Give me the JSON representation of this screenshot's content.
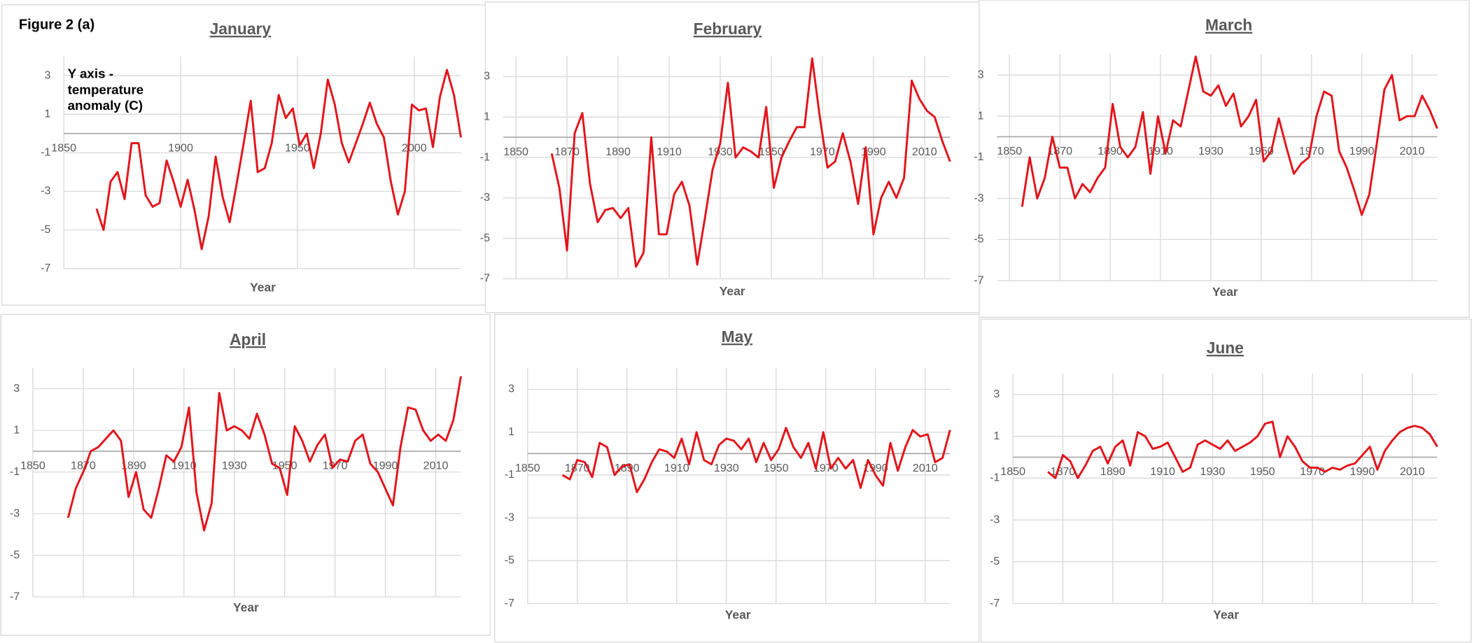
{
  "figure_label": "Figure 2 (a)",
  "chart_data": [
    {
      "type": "line",
      "title": "January",
      "xlabel": "Year",
      "annotation": "Y axis - temperature anomaly (C)",
      "color": "#e3141b",
      "x": [
        1864,
        1867,
        1870,
        1873,
        1876,
        1879,
        1882,
        1885,
        1888,
        1891,
        1894,
        1897,
        1900,
        1903,
        1906,
        1909,
        1912,
        1915,
        1918,
        1921,
        1924,
        1927,
        1930,
        1933,
        1936,
        1939,
        1942,
        1945,
        1948,
        1951,
        1954,
        1957,
        1960,
        1963,
        1966,
        1969,
        1972,
        1975,
        1978,
        1981,
        1984,
        1987,
        1990,
        1993,
        1996,
        1999,
        2002,
        2005,
        2008,
        2011,
        2014,
        2017,
        2020
      ],
      "values": [
        -3.9,
        -5.0,
        -2.5,
        -2.0,
        -3.4,
        -0.5,
        -0.5,
        -3.2,
        -3.8,
        -3.6,
        -1.4,
        -2.5,
        -3.8,
        -2.4,
        -4.0,
        -6.0,
        -4.3,
        -1.2,
        -3.3,
        -4.6,
        -2.6,
        -0.5,
        1.7,
        -2.0,
        -1.8,
        -0.5,
        2.0,
        0.8,
        1.3,
        -0.6,
        0,
        -1.8,
        0,
        2.8,
        1.5,
        -0.5,
        -1.5,
        -0.5,
        0.5,
        1.6,
        0.5,
        -0.2,
        -2.5,
        -4.2,
        -3.0,
        1.5,
        1.2,
        1.3,
        -0.7,
        1.9,
        3.3,
        2.0,
        -0.2
      ],
      "xlim": [
        1850,
        2020
      ],
      "xticks": [
        1850,
        1900,
        1950,
        2000
      ],
      "ylim": [
        -7,
        4
      ],
      "yticks": [
        -7,
        -5,
        -3,
        -1,
        1,
        3
      ],
      "grid": true
    },
    {
      "type": "line",
      "title": "February",
      "xlabel": "Year",
      "color": "#e3141b",
      "x": [
        1864,
        1867,
        1870,
        1873,
        1876,
        1879,
        1882,
        1885,
        1888,
        1891,
        1894,
        1897,
        1900,
        1903,
        1906,
        1909,
        1912,
        1915,
        1918,
        1921,
        1924,
        1927,
        1930,
        1933,
        1936,
        1939,
        1942,
        1945,
        1948,
        1951,
        1954,
        1957,
        1960,
        1963,
        1966,
        1969,
        1972,
        1975,
        1978,
        1981,
        1984,
        1987,
        1990,
        1993,
        1996,
        1999,
        2002,
        2005,
        2008,
        2011,
        2014,
        2017,
        2020
      ],
      "values": [
        -0.8,
        -2.5,
        -5.6,
        0.2,
        1.2,
        -2.3,
        -4.2,
        -3.6,
        -3.5,
        -4.0,
        -3.5,
        -6.4,
        -5.7,
        0,
        -4.8,
        -4.8,
        -2.8,
        -2.2,
        -3.4,
        -6.3,
        -4.0,
        -1.6,
        -0.3,
        2.7,
        -1.0,
        -0.5,
        -0.7,
        -1.0,
        1.5,
        -2.5,
        -1.0,
        -0.2,
        0.5,
        0.5,
        3.9,
        1.0,
        -1.5,
        -1.2,
        0.2,
        -1.2,
        -3.3,
        -0.5,
        -4.8,
        -3.0,
        -2.2,
        -3.0,
        -2.0,
        2.8,
        1.9,
        1.3,
        1.0,
        -0.2,
        -1.2
      ],
      "xlim": [
        1845,
        2020
      ],
      "xticks": [
        1850,
        1870,
        1890,
        1910,
        1930,
        1950,
        1970,
        1990,
        2010
      ],
      "ylim": [
        -7,
        4
      ],
      "yticks": [
        -7,
        -5,
        -3,
        -1,
        1,
        3
      ],
      "grid": true
    },
    {
      "type": "line",
      "title": "March",
      "xlabel": "Year",
      "color": "#e3141b",
      "x": [
        1855,
        1858,
        1861,
        1864,
        1867,
        1870,
        1873,
        1876,
        1879,
        1882,
        1885,
        1888,
        1891,
        1894,
        1897,
        1900,
        1903,
        1906,
        1909,
        1912,
        1915,
        1918,
        1921,
        1924,
        1927,
        1930,
        1933,
        1936,
        1939,
        1942,
        1945,
        1948,
        1951,
        1954,
        1957,
        1960,
        1963,
        1966,
        1969,
        1972,
        1975,
        1978,
        1981,
        1984,
        1987,
        1990,
        1993,
        1996,
        1999,
        2002,
        2005,
        2008,
        2011,
        2014,
        2017,
        2020
      ],
      "values": [
        -3.4,
        -1.0,
        -3.0,
        -2.0,
        0,
        -1.5,
        -1.5,
        -3.0,
        -2.3,
        -2.7,
        -2.0,
        -1.5,
        1.6,
        -0.5,
        -1.0,
        -0.5,
        1.2,
        -1.8,
        1.0,
        -0.8,
        0.8,
        0.5,
        2.2,
        3.9,
        2.2,
        2.0,
        2.5,
        1.5,
        2.1,
        0.5,
        1.0,
        1.8,
        -1.2,
        -0.7,
        0.9,
        -0.5,
        -1.8,
        -1.3,
        -1.0,
        1.0,
        2.2,
        2.0,
        -0.7,
        -1.5,
        -2.6,
        -3.8,
        -2.8,
        -0.3,
        2.3,
        3.0,
        0.8,
        1.0,
        1.0,
        2.0,
        1.3,
        0.4
      ],
      "xlim": [
        1845,
        2020
      ],
      "xticks": [
        1850,
        1870,
        1890,
        1910,
        1930,
        1950,
        1970,
        1990,
        2010
      ],
      "ylim": [
        -7,
        4
      ],
      "yticks": [
        -7,
        -5,
        -3,
        -1,
        1,
        3
      ],
      "grid": true
    },
    {
      "type": "line",
      "title": "April",
      "xlabel": "Year",
      "color": "#e3141b",
      "x": [
        1864,
        1867,
        1870,
        1873,
        1876,
        1879,
        1882,
        1885,
        1888,
        1891,
        1894,
        1897,
        1900,
        1903,
        1906,
        1909,
        1912,
        1915,
        1918,
        1921,
        1924,
        1927,
        1930,
        1933,
        1936,
        1939,
        1942,
        1945,
        1948,
        1951,
        1954,
        1957,
        1960,
        1963,
        1966,
        1969,
        1972,
        1975,
        1978,
        1981,
        1984,
        1987,
        1990,
        1993,
        1996,
        1999,
        2002,
        2005,
        2008,
        2011,
        2014,
        2017,
        2020
      ],
      "values": [
        -3.2,
        -1.8,
        -1.0,
        0,
        0.2,
        0.6,
        1.0,
        0.5,
        -2.2,
        -1.0,
        -2.8,
        -3.2,
        -1.8,
        -0.2,
        -0.5,
        0.2,
        2.1,
        -2.0,
        -3.8,
        -2.5,
        2.8,
        1.0,
        1.2,
        1.0,
        0.6,
        1.8,
        0.8,
        -0.6,
        -0.8,
        -2.1,
        1.2,
        0.5,
        -0.5,
        0.3,
        0.8,
        -0.8,
        -0.4,
        -0.5,
        0.5,
        0.8,
        -0.6,
        -1.0,
        -1.8,
        -2.6,
        0.2,
        2.1,
        2.0,
        1.0,
        0.5,
        0.8,
        0.5,
        1.5,
        3.6
      ],
      "xlim": [
        1850,
        2020
      ],
      "xticks": [
        1850,
        1870,
        1890,
        1910,
        1930,
        1950,
        1970,
        1990,
        2010
      ],
      "ylim": [
        -7,
        4
      ],
      "yticks": [
        -7,
        -5,
        -3,
        -1,
        1,
        3
      ],
      "grid": true
    },
    {
      "type": "line",
      "title": "May",
      "xlabel": "Year",
      "color": "#e3141b",
      "x": [
        1864,
        1867,
        1870,
        1873,
        1876,
        1879,
        1882,
        1885,
        1888,
        1891,
        1894,
        1897,
        1900,
        1903,
        1906,
        1909,
        1912,
        1915,
        1918,
        1921,
        1924,
        1927,
        1930,
        1933,
        1936,
        1939,
        1942,
        1945,
        1948,
        1951,
        1954,
        1957,
        1960,
        1963,
        1966,
        1969,
        1972,
        1975,
        1978,
        1981,
        1984,
        1987,
        1990,
        1993,
        1996,
        1999,
        2002,
        2005,
        2008,
        2011,
        2014,
        2017,
        2020
      ],
      "values": [
        -1.0,
        -1.2,
        -0.3,
        -0.4,
        -1.1,
        0.5,
        0.3,
        -1.0,
        -0.6,
        -0.5,
        -1.8,
        -1.2,
        -0.4,
        0.2,
        0.1,
        -0.2,
        0.7,
        -0.5,
        1.0,
        -0.3,
        -0.5,
        0.4,
        0.7,
        0.6,
        0.2,
        0.7,
        -0.4,
        0.5,
        -0.3,
        0.2,
        1.2,
        0.3,
        -0.2,
        0.5,
        -0.7,
        1.0,
        -0.7,
        -0.2,
        -0.7,
        -0.3,
        -1.6,
        -0.3,
        -1.0,
        -1.5,
        0.5,
        -0.8,
        0.3,
        1.1,
        0.8,
        0.9,
        -0.4,
        -0.2,
        1.1
      ],
      "xlim": [
        1850,
        2020
      ],
      "xticks": [
        1850,
        1870,
        1890,
        1910,
        1930,
        1950,
        1970,
        1990,
        2010
      ],
      "ylim": [
        -7,
        4
      ],
      "yticks": [
        -7,
        -5,
        -3,
        -1,
        1,
        3
      ],
      "grid": true
    },
    {
      "type": "line",
      "title": "June",
      "xlabel": "Year",
      "color": "#e3141b",
      "x": [
        1864,
        1867,
        1870,
        1873,
        1876,
        1879,
        1882,
        1885,
        1888,
        1891,
        1894,
        1897,
        1900,
        1903,
        1906,
        1909,
        1912,
        1915,
        1918,
        1921,
        1924,
        1927,
        1930,
        1933,
        1936,
        1939,
        1942,
        1945,
        1948,
        1951,
        1954,
        1957,
        1960,
        1963,
        1966,
        1969,
        1972,
        1975,
        1978,
        1981,
        1984,
        1987,
        1990,
        1993,
        1996,
        1999,
        2002,
        2005,
        2008,
        2011,
        2014,
        2017,
        2020
      ],
      "values": [
        -0.7,
        -1.0,
        0.1,
        -0.2,
        -1.0,
        -0.4,
        0.3,
        0.5,
        -0.3,
        0.5,
        0.8,
        -0.4,
        1.2,
        1.0,
        0.4,
        0.5,
        0.7,
        0,
        -0.7,
        -0.5,
        0.6,
        0.8,
        0.6,
        0.4,
        0.8,
        0.3,
        0.5,
        0.7,
        1.0,
        1.6,
        1.7,
        0,
        1.0,
        0.5,
        -0.2,
        -0.5,
        -0.5,
        -0.7,
        -0.5,
        -0.6,
        -0.4,
        -0.3,
        0.1,
        0.5,
        -0.6,
        0.3,
        0.8,
        1.2,
        1.4,
        1.5,
        1.4,
        1.1,
        0.5
      ],
      "xlim": [
        1850,
        2020
      ],
      "xticks": [
        1850,
        1870,
        1890,
        1910,
        1930,
        1950,
        1970,
        1990,
        2010
      ],
      "ylim": [
        -7,
        4
      ],
      "yticks": [
        -7,
        -5,
        -3,
        -1,
        1,
        3
      ],
      "grid": true
    }
  ]
}
